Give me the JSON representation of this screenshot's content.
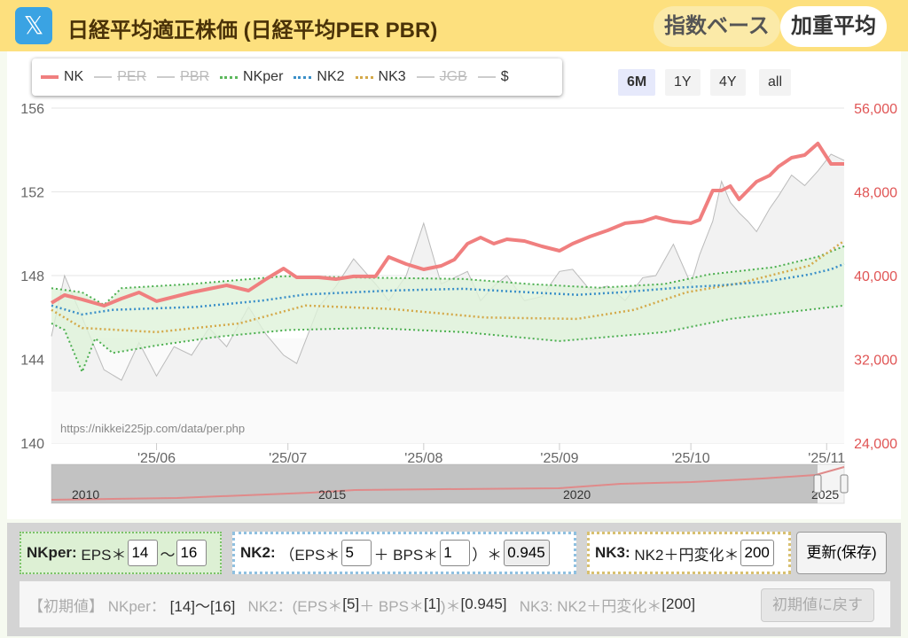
{
  "header": {
    "logo": "𝕏",
    "title": "日経平均適正株価 (日経平均PER PBR)",
    "btn_index": "指数ベース",
    "btn_weighted": "加重平均"
  },
  "legend": [
    {
      "name": "NK",
      "color": "#f07f7f",
      "style": "solid",
      "hidden": false
    },
    {
      "name": "PER",
      "color": "#cccccc",
      "style": "solid",
      "hidden": true
    },
    {
      "name": "PBR",
      "color": "#cccccc",
      "style": "solid",
      "hidden": true
    },
    {
      "name": "NKper",
      "color": "#5cb85c",
      "style": "dotted",
      "hidden": false
    },
    {
      "name": "NK2",
      "color": "#3a8fc8",
      "style": "dotted",
      "hidden": false
    },
    {
      "name": "NK3",
      "color": "#d4a94a",
      "style": "dotted",
      "hidden": false
    },
    {
      "name": "JGB",
      "color": "#cccccc",
      "style": "solid",
      "hidden": true
    },
    {
      "name": "$",
      "color": "#cccccc",
      "style": "solid",
      "hidden": false
    }
  ],
  "ranges": [
    {
      "label": "6M",
      "active": true
    },
    {
      "label": "1Y",
      "active": false
    },
    {
      "label": "4Y",
      "active": false
    },
    {
      "label": "all",
      "active": false
    }
  ],
  "chart_data": {
    "type": "line",
    "watermark": "https://nikkei225jp.com/data/per.php",
    "x_range": [
      "2025-05-08",
      "2025-11-05"
    ],
    "x_ticks": [
      {
        "date": "2025-06-01",
        "label": "'25/06"
      },
      {
        "date": "2025-07-01",
        "label": "'25/07"
      },
      {
        "date": "2025-08-01",
        "label": "'25/08"
      },
      {
        "date": "2025-09-01",
        "label": "'25/09"
      },
      {
        "date": "2025-10-01",
        "label": "'25/10"
      },
      {
        "date": "2025-11-01",
        "label": "'25/11"
      }
    ],
    "y_left": {
      "range": [
        140,
        156
      ],
      "ticks": [
        "140",
        "144",
        "148",
        "152",
        "156"
      ]
    },
    "y_right": {
      "range": [
        24000,
        56000
      ],
      "ticks": [
        "24,000",
        "32,000",
        "40,000",
        "48,000",
        "56,000"
      ],
      "color": "#e05555"
    },
    "grid": true,
    "series": [
      {
        "name": "NK",
        "axis": "right",
        "color": "#f07f7f",
        "points": [
          [
            "2025-05-08",
            37380
          ],
          [
            "2025-05-11",
            38140
          ],
          [
            "2025-05-15",
            37720
          ],
          [
            "2025-05-20",
            37120
          ],
          [
            "2025-05-24",
            37800
          ],
          [
            "2025-05-28",
            38390
          ],
          [
            "2025-06-01",
            37550
          ],
          [
            "2025-06-05",
            37970
          ],
          [
            "2025-06-09",
            38390
          ],
          [
            "2025-06-13",
            38730
          ],
          [
            "2025-06-17",
            39070
          ],
          [
            "2025-06-22",
            38560
          ],
          [
            "2025-06-26",
            39660
          ],
          [
            "2025-06-30",
            40680
          ],
          [
            "2025-07-03",
            39830
          ],
          [
            "2025-07-08",
            39830
          ],
          [
            "2025-07-12",
            39660
          ],
          [
            "2025-07-16",
            39920
          ],
          [
            "2025-07-21",
            39920
          ],
          [
            "2025-07-24",
            41780
          ],
          [
            "2025-07-28",
            41100
          ],
          [
            "2025-08-01",
            40590
          ],
          [
            "2025-08-05",
            40930
          ],
          [
            "2025-08-08",
            41520
          ],
          [
            "2025-08-11",
            43050
          ],
          [
            "2025-08-14",
            43640
          ],
          [
            "2025-08-17",
            43050
          ],
          [
            "2025-08-20",
            43470
          ],
          [
            "2025-08-24",
            43300
          ],
          [
            "2025-08-28",
            42790
          ],
          [
            "2025-09-01",
            42370
          ],
          [
            "2025-09-04",
            43050
          ],
          [
            "2025-09-08",
            43730
          ],
          [
            "2025-09-12",
            44320
          ],
          [
            "2025-09-16",
            45000
          ],
          [
            "2025-09-20",
            45170
          ],
          [
            "2025-09-23",
            45590
          ],
          [
            "2025-09-27",
            45170
          ],
          [
            "2025-10-01",
            45000
          ],
          [
            "2025-10-03",
            45330
          ],
          [
            "2025-10-06",
            48130
          ],
          [
            "2025-10-08",
            48130
          ],
          [
            "2025-10-10",
            48550
          ],
          [
            "2025-10-12",
            47280
          ],
          [
            "2025-10-14",
            48130
          ],
          [
            "2025-10-16",
            48970
          ],
          [
            "2025-10-19",
            49570
          ],
          [
            "2025-10-21",
            50410
          ],
          [
            "2025-10-24",
            51260
          ],
          [
            "2025-10-27",
            51510
          ],
          [
            "2025-10-30",
            52620
          ],
          [
            "2025-11-02",
            50670
          ],
          [
            "2025-11-05",
            50670
          ]
        ]
      },
      {
        "name": "$",
        "axis": "left",
        "color": "#bbbbbb",
        "points": [
          [
            "2025-05-08",
            145.1
          ],
          [
            "2025-05-11",
            148.0
          ],
          [
            "2025-05-15",
            146.0
          ],
          [
            "2025-05-20",
            143.5
          ],
          [
            "2025-05-24",
            143.0
          ],
          [
            "2025-05-28",
            144.8
          ],
          [
            "2025-06-01",
            143.2
          ],
          [
            "2025-06-05",
            144.6
          ],
          [
            "2025-06-09",
            144.2
          ],
          [
            "2025-06-13",
            145.5
          ],
          [
            "2025-06-17",
            144.6
          ],
          [
            "2025-06-22",
            146.5
          ],
          [
            "2025-06-26",
            145.2
          ],
          [
            "2025-06-30",
            144.2
          ],
          [
            "2025-07-03",
            143.8
          ],
          [
            "2025-07-08",
            146.5
          ],
          [
            "2025-07-12",
            147.5
          ],
          [
            "2025-07-16",
            148.8
          ],
          [
            "2025-07-21",
            147.6
          ],
          [
            "2025-07-24",
            146.8
          ],
          [
            "2025-07-28",
            148.0
          ],
          [
            "2025-08-01",
            150.5
          ],
          [
            "2025-08-05",
            147.6
          ],
          [
            "2025-08-08",
            147.9
          ],
          [
            "2025-08-11",
            148.2
          ],
          [
            "2025-08-14",
            146.8
          ],
          [
            "2025-08-17",
            147.5
          ],
          [
            "2025-08-20",
            148.0
          ],
          [
            "2025-08-24",
            146.8
          ],
          [
            "2025-08-28",
            147.0
          ],
          [
            "2025-09-01",
            148.2
          ],
          [
            "2025-09-04",
            148.3
          ],
          [
            "2025-09-08",
            147.3
          ],
          [
            "2025-09-12",
            147.5
          ],
          [
            "2025-09-16",
            146.8
          ],
          [
            "2025-09-20",
            147.9
          ],
          [
            "2025-09-23",
            148.0
          ],
          [
            "2025-09-27",
            149.5
          ],
          [
            "2025-10-01",
            147.6
          ],
          [
            "2025-10-03",
            149.0
          ],
          [
            "2025-10-06",
            150.6
          ],
          [
            "2025-10-08",
            152.5
          ],
          [
            "2025-10-10",
            151.5
          ],
          [
            "2025-10-12",
            151.0
          ],
          [
            "2025-10-14",
            150.6
          ],
          [
            "2025-10-16",
            150.1
          ],
          [
            "2025-10-19",
            151.2
          ],
          [
            "2025-10-21",
            151.8
          ],
          [
            "2025-10-24",
            152.8
          ],
          [
            "2025-10-27",
            152.3
          ],
          [
            "2025-10-30",
            153.0
          ],
          [
            "2025-11-02",
            153.8
          ],
          [
            "2025-11-05",
            153.5
          ]
        ]
      },
      {
        "name": "NKper-upper",
        "axis": "left",
        "color": "#5cb85c",
        "points": [
          [
            "2025-05-08",
            147.4
          ],
          [
            "2025-05-15",
            147.2
          ],
          [
            "2025-05-20",
            146.6
          ],
          [
            "2025-05-24",
            147.4
          ],
          [
            "2025-06-09",
            147.6
          ],
          [
            "2025-06-30",
            147.97
          ],
          [
            "2025-07-20",
            147.9
          ],
          [
            "2025-08-10",
            147.84
          ],
          [
            "2025-08-25",
            147.6
          ],
          [
            "2025-09-10",
            147.42
          ],
          [
            "2025-09-25",
            147.6
          ],
          [
            "2025-10-05",
            148.05
          ],
          [
            "2025-10-20",
            148.4
          ],
          [
            "2025-10-30",
            148.9
          ],
          [
            "2025-11-05",
            149.4
          ]
        ]
      },
      {
        "name": "NKper-lower",
        "axis": "left",
        "color": "#5cb85c",
        "points": [
          [
            "2025-05-08",
            145.72
          ],
          [
            "2025-05-11",
            145.4
          ],
          [
            "2025-05-15",
            143.4
          ],
          [
            "2025-05-18",
            145.0
          ],
          [
            "2025-05-22",
            144.3
          ],
          [
            "2025-06-01",
            144.66
          ],
          [
            "2025-06-15",
            145.08
          ],
          [
            "2025-07-01",
            145.4
          ],
          [
            "2025-07-20",
            145.5
          ],
          [
            "2025-08-10",
            145.3
          ],
          [
            "2025-09-01",
            144.87
          ],
          [
            "2025-09-25",
            145.3
          ],
          [
            "2025-10-10",
            145.93
          ],
          [
            "2025-10-25",
            146.3
          ],
          [
            "2025-11-05",
            146.57
          ]
        ]
      },
      {
        "name": "NK2",
        "axis": "left",
        "color": "#3a8fc8",
        "points": [
          [
            "2025-05-08",
            146.57
          ],
          [
            "2025-05-15",
            146.14
          ],
          [
            "2025-05-22",
            146.36
          ],
          [
            "2025-06-10",
            146.5
          ],
          [
            "2025-06-25",
            146.8
          ],
          [
            "2025-07-05",
            147.1
          ],
          [
            "2025-07-25",
            147.29
          ],
          [
            "2025-08-10",
            147.37
          ],
          [
            "2025-08-25",
            147.2
          ],
          [
            "2025-09-05",
            147.08
          ],
          [
            "2025-09-15",
            147.2
          ],
          [
            "2025-09-28",
            147.42
          ],
          [
            "2025-10-08",
            147.54
          ],
          [
            "2025-10-18",
            147.71
          ],
          [
            "2025-10-28",
            148.05
          ],
          [
            "2025-11-02",
            148.3
          ],
          [
            "2025-11-05",
            148.56
          ]
        ]
      },
      {
        "name": "NK3",
        "axis": "left",
        "color": "#d4a94a",
        "points": [
          [
            "2025-05-08",
            146.36
          ],
          [
            "2025-05-15",
            145.5
          ],
          [
            "2025-06-01",
            145.3
          ],
          [
            "2025-06-20",
            145.72
          ],
          [
            "2025-07-05",
            146.57
          ],
          [
            "2025-07-25",
            146.4
          ],
          [
            "2025-08-15",
            146.0
          ],
          [
            "2025-09-05",
            145.93
          ],
          [
            "2025-09-18",
            146.36
          ],
          [
            "2025-09-30",
            147.2
          ],
          [
            "2025-10-12",
            147.63
          ],
          [
            "2025-10-28",
            148.47
          ],
          [
            "2025-11-05",
            149.66
          ]
        ]
      }
    ],
    "navigator": {
      "labels": [
        "2010",
        "2015",
        "2020",
        "2025"
      ]
    }
  },
  "controls": {
    "nkper": {
      "label": "NKper:",
      "eps": "EPS＊",
      "min": "14",
      "sep": "〜",
      "max": "16"
    },
    "nk2": {
      "label": "NK2:",
      "open": "（EPS＊",
      "eps": "5",
      "plus": "＋ BPS＊",
      "bps": "1",
      "close": "）＊",
      "mult": "0.945"
    },
    "nk3": {
      "label": "NK3:",
      "text": "NK2＋円変化＊",
      "val": "200"
    },
    "update": "更新(保存)",
    "defaults": {
      "label": "【初期値】 NKper：",
      "per": "[14]〜[16]",
      "nk2label": "NK2：(EPS＊",
      "eps": "[5]",
      "bpsl": "＋ BPS＊",
      "bps": "[1]",
      "mul": ")＊",
      "mult": "[0.945]",
      "nk3label": "NK3: NK2＋円変化＊",
      "nk3": "[200]",
      "reset": "初期値に戻す"
    }
  }
}
